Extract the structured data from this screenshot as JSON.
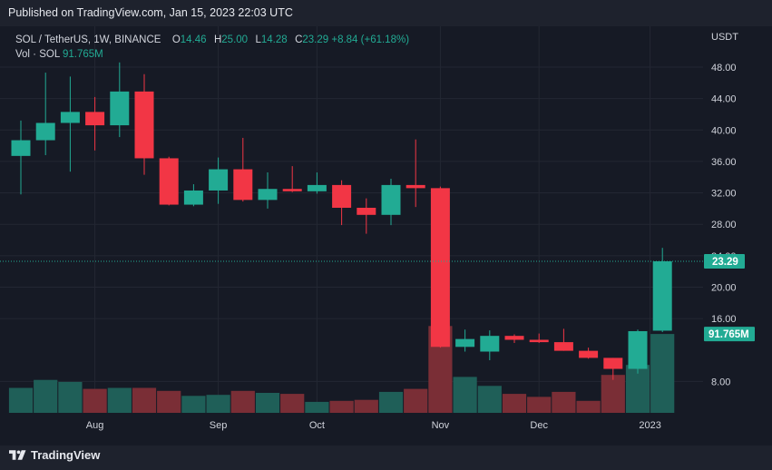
{
  "header": {
    "published": "Published on TradingView.com, Jan 15, 2023 22:03 UTC"
  },
  "legend": {
    "symbol": "SOL / TetherUS, 1W, BINANCE",
    "o_label": "O",
    "o_value": "14.46",
    "h_label": "H",
    "h_value": "25.00",
    "l_label": "L",
    "l_value": "14.28",
    "c_label": "C",
    "c_value": "23.29",
    "change": "+8.84 (+61.18%)",
    "vol_label": "Vol · SOL",
    "vol_value": "91.765M"
  },
  "footer": {
    "brand": "TradingView"
  },
  "colors": {
    "up": "#22ab94",
    "down": "#f23645",
    "vol_up": "#1f5f58",
    "vol_down": "#7a2e36",
    "background": "#161a25",
    "grid": "#232733",
    "axis_text": "#d1d4dc"
  },
  "icons": [
    "tradingview-logo-icon"
  ],
  "chart_data": {
    "type": "candlestick",
    "currency_label": "USDT",
    "y_ticks": [
      "8.00",
      "16.00",
      "20.00",
      "24.00",
      "28.00",
      "32.00",
      "36.00",
      "40.00",
      "44.00",
      "48.00"
    ],
    "x_labels": [
      "Aug",
      "Sep",
      "Oct",
      "Nov",
      "Dec",
      "2023"
    ],
    "last_price_label": "23.29",
    "volume_label": "91.765M",
    "candles": [
      {
        "o": 36.7,
        "h": 41.2,
        "l": 31.8,
        "c": 38.7
      },
      {
        "o": 38.7,
        "h": 47.3,
        "l": 36.8,
        "c": 40.9
      },
      {
        "o": 40.9,
        "h": 46.8,
        "l": 34.7,
        "c": 42.3
      },
      {
        "o": 42.3,
        "h": 44.2,
        "l": 37.4,
        "c": 40.6
      },
      {
        "o": 40.6,
        "h": 48.6,
        "l": 39.1,
        "c": 44.9
      },
      {
        "o": 44.9,
        "h": 47.1,
        "l": 34.3,
        "c": 36.4
      },
      {
        "o": 36.4,
        "h": 36.6,
        "l": 30.4,
        "c": 30.5
      },
      {
        "o": 30.5,
        "h": 33.1,
        "l": 30.3,
        "c": 32.3
      },
      {
        "o": 32.3,
        "h": 36.5,
        "l": 30.6,
        "c": 35.0
      },
      {
        "o": 35.0,
        "h": 39.0,
        "l": 30.9,
        "c": 31.1
      },
      {
        "o": 31.1,
        "h": 34.6,
        "l": 30.0,
        "c": 32.5
      },
      {
        "o": 32.5,
        "h": 35.4,
        "l": 32.1,
        "c": 32.2
      },
      {
        "o": 32.2,
        "h": 34.6,
        "l": 31.9,
        "c": 33.0
      },
      {
        "o": 33.0,
        "h": 33.6,
        "l": 27.9,
        "c": 30.1
      },
      {
        "o": 30.1,
        "h": 31.3,
        "l": 26.8,
        "c": 29.2
      },
      {
        "o": 29.2,
        "h": 33.8,
        "l": 27.9,
        "c": 33.0
      },
      {
        "o": 33.0,
        "h": 38.8,
        "l": 30.2,
        "c": 32.6
      },
      {
        "o": 32.6,
        "h": 32.8,
        "l": 12.3,
        "c": 12.4
      },
      {
        "o": 12.4,
        "h": 14.6,
        "l": 11.8,
        "c": 13.4
      },
      {
        "o": 11.8,
        "h": 14.5,
        "l": 10.7,
        "c": 13.8
      },
      {
        "o": 13.8,
        "h": 14.0,
        "l": 12.9,
        "c": 13.3
      },
      {
        "o": 13.3,
        "h": 14.1,
        "l": 12.9,
        "c": 13.0
      },
      {
        "o": 13.0,
        "h": 14.7,
        "l": 11.9,
        "c": 11.9
      },
      {
        "o": 11.9,
        "h": 12.3,
        "l": 10.9,
        "c": 11.0
      },
      {
        "o": 11.0,
        "h": 11.0,
        "l": 8.2,
        "c": 9.6
      },
      {
        "o": 9.6,
        "h": 14.6,
        "l": 9.0,
        "c": 14.4
      },
      {
        "o": 14.46,
        "h": 25.0,
        "l": 14.28,
        "c": 23.29
      }
    ],
    "volume_relative": [
      0.25,
      0.33,
      0.31,
      0.24,
      0.25,
      0.25,
      0.22,
      0.17,
      0.18,
      0.22,
      0.2,
      0.19,
      0.11,
      0.12,
      0.13,
      0.21,
      0.24,
      0.87,
      0.36,
      0.27,
      0.19,
      0.16,
      0.21,
      0.12,
      0.38,
      0.48,
      0.79
    ]
  }
}
